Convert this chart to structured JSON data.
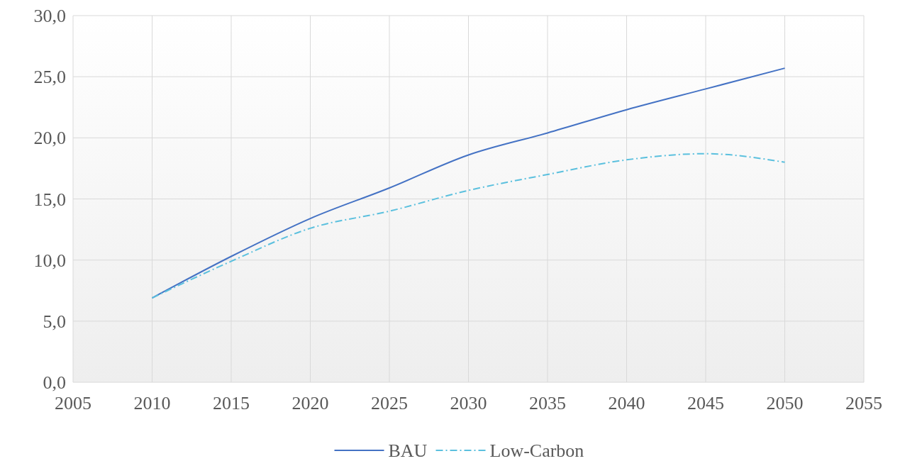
{
  "chart_data": {
    "type": "line",
    "x": [
      2010,
      2015,
      2020,
      2025,
      2030,
      2035,
      2040,
      2045,
      2050
    ],
    "series": [
      {
        "name": "BAU",
        "color": "#4472c4",
        "line_style": "solid",
        "values": [
          6.9,
          10.3,
          13.4,
          15.9,
          18.6,
          20.4,
          22.3,
          24.0,
          25.7
        ]
      },
      {
        "name": "Low-Carbon",
        "color": "#5bc0de",
        "line_style": "dashed",
        "values": [
          6.9,
          9.9,
          12.6,
          14.0,
          15.7,
          17.0,
          18.2,
          18.7,
          18.0
        ]
      }
    ],
    "xlim": [
      2005,
      2055
    ],
    "xticks": [
      2005,
      2010,
      2015,
      2020,
      2025,
      2030,
      2035,
      2040,
      2045,
      2050,
      2055
    ],
    "ylim": [
      0,
      30
    ],
    "yticks": [
      {
        "value": 0,
        "label": "0,0"
      },
      {
        "value": 5,
        "label": "5,0"
      },
      {
        "value": 10,
        "label": "10,0"
      },
      {
        "value": 15,
        "label": "15,0"
      },
      {
        "value": 20,
        "label": "20,0"
      },
      {
        "value": 25,
        "label": "25,0"
      },
      {
        "value": 30,
        "label": "30,0"
      }
    ],
    "grid": true,
    "legend": "bottom",
    "marker": "none"
  }
}
